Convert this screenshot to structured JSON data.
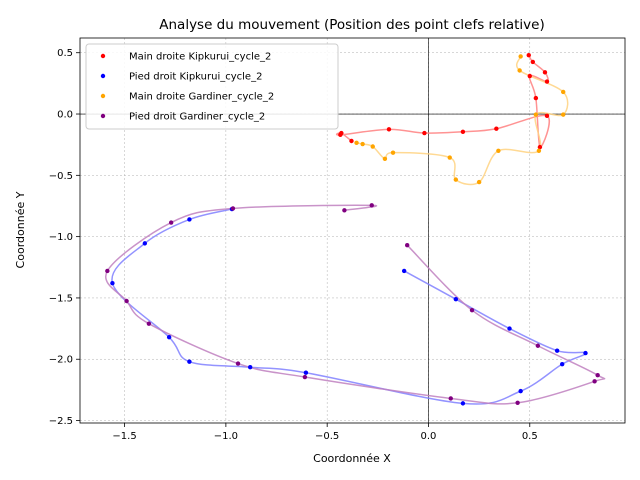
{
  "chart_data": {
    "type": "scatter",
    "title": "Analyse du mouvement (Position des point clefs relative)",
    "xlabel": "Coordonnée X",
    "ylabel": "Coordonnée Y",
    "xlim": [
      -1.72,
      0.97
    ],
    "ylim": [
      -2.52,
      0.62
    ],
    "xticks": [
      -1.5,
      -1.0,
      -0.5,
      0.0,
      0.5
    ],
    "xtick_labels": [
      "−1.5",
      "−1.0",
      "−0.5",
      "0.0",
      "0.5"
    ],
    "yticks": [
      0.5,
      0.0,
      -0.5,
      -1.0,
      -1.5,
      -2.0,
      -2.5
    ],
    "ytick_labels": [
      "0.5",
      "0.0",
      "−0.5",
      "−1.0",
      "−1.5",
      "−2.0",
      "−2.5"
    ],
    "grid": true,
    "legend_position": "upper-left",
    "series": [
      {
        "name": "Main droite Kipkurui_cycle_2",
        "color": "#ff0000",
        "line_color": "#ff8080",
        "points": [
          [
            0.495,
            0.48
          ],
          [
            0.515,
            0.425
          ],
          [
            0.575,
            0.34
          ],
          [
            0.585,
            0.265
          ],
          [
            0.5,
            0.31
          ],
          [
            0.53,
            0.13
          ],
          [
            0.55,
            -0.27
          ],
          [
            0.585,
            -0.015
          ],
          [
            0.335,
            -0.12
          ],
          [
            0.17,
            -0.145
          ],
          [
            -0.02,
            -0.155
          ],
          [
            -0.195,
            -0.125
          ],
          [
            -0.435,
            -0.17
          ],
          [
            -0.43,
            -0.155
          ],
          [
            -0.38,
            -0.22
          ]
        ]
      },
      {
        "name": "Pied droit Kipkurui_cycle_2",
        "color": "#0000ff",
        "line_color": "#8080ff",
        "points": [
          [
            -0.12,
            -1.28
          ],
          [
            0.135,
            -1.51
          ],
          [
            0.4,
            -1.75
          ],
          [
            0.635,
            -1.93
          ],
          [
            0.775,
            -1.95
          ],
          [
            0.66,
            -2.04
          ],
          [
            0.455,
            -2.26
          ],
          [
            0.17,
            -2.36
          ],
          [
            -0.605,
            -2.11
          ],
          [
            -0.88,
            -2.065
          ],
          [
            -1.18,
            -2.02
          ],
          [
            -1.28,
            -1.82
          ],
          [
            -1.56,
            -1.38
          ],
          [
            -1.4,
            -1.055
          ],
          [
            -1.18,
            -0.86
          ],
          [
            -0.97,
            -0.775
          ]
        ]
      },
      {
        "name": "Main droite Gardiner_cycle_2",
        "color": "#ffa500",
        "line_color": "#ffd280",
        "points": [
          [
            0.455,
            0.47
          ],
          [
            0.45,
            0.355
          ],
          [
            0.665,
            0.18
          ],
          [
            0.665,
            -0.005
          ],
          [
            0.53,
            -0.005
          ],
          [
            0.545,
            -0.3
          ],
          [
            0.345,
            -0.3
          ],
          [
            0.25,
            -0.555
          ],
          [
            0.135,
            -0.535
          ],
          [
            0.105,
            -0.355
          ],
          [
            -0.175,
            -0.315
          ],
          [
            -0.215,
            -0.365
          ],
          [
            -0.275,
            -0.265
          ],
          [
            -0.325,
            -0.245
          ],
          [
            -0.355,
            -0.235
          ]
        ]
      },
      {
        "name": "Pied droit Gardiner_cycle_2",
        "color": "#800080",
        "line_color": "#c080c0",
        "points": [
          [
            -0.415,
            -0.785
          ],
          [
            -0.28,
            -0.745
          ],
          [
            -0.965,
            -0.77
          ],
          [
            -1.27,
            -0.885
          ],
          [
            -1.585,
            -1.28
          ],
          [
            -1.49,
            -1.525
          ],
          [
            -1.38,
            -1.71
          ],
          [
            -0.94,
            -2.035
          ],
          [
            -0.61,
            -2.145
          ],
          [
            0.11,
            -2.32
          ],
          [
            0.44,
            -2.355
          ],
          [
            0.82,
            -2.18
          ],
          [
            0.835,
            -2.13
          ],
          [
            0.54,
            -1.89
          ],
          [
            0.215,
            -1.6
          ],
          [
            -0.105,
            -1.07
          ]
        ]
      }
    ]
  }
}
